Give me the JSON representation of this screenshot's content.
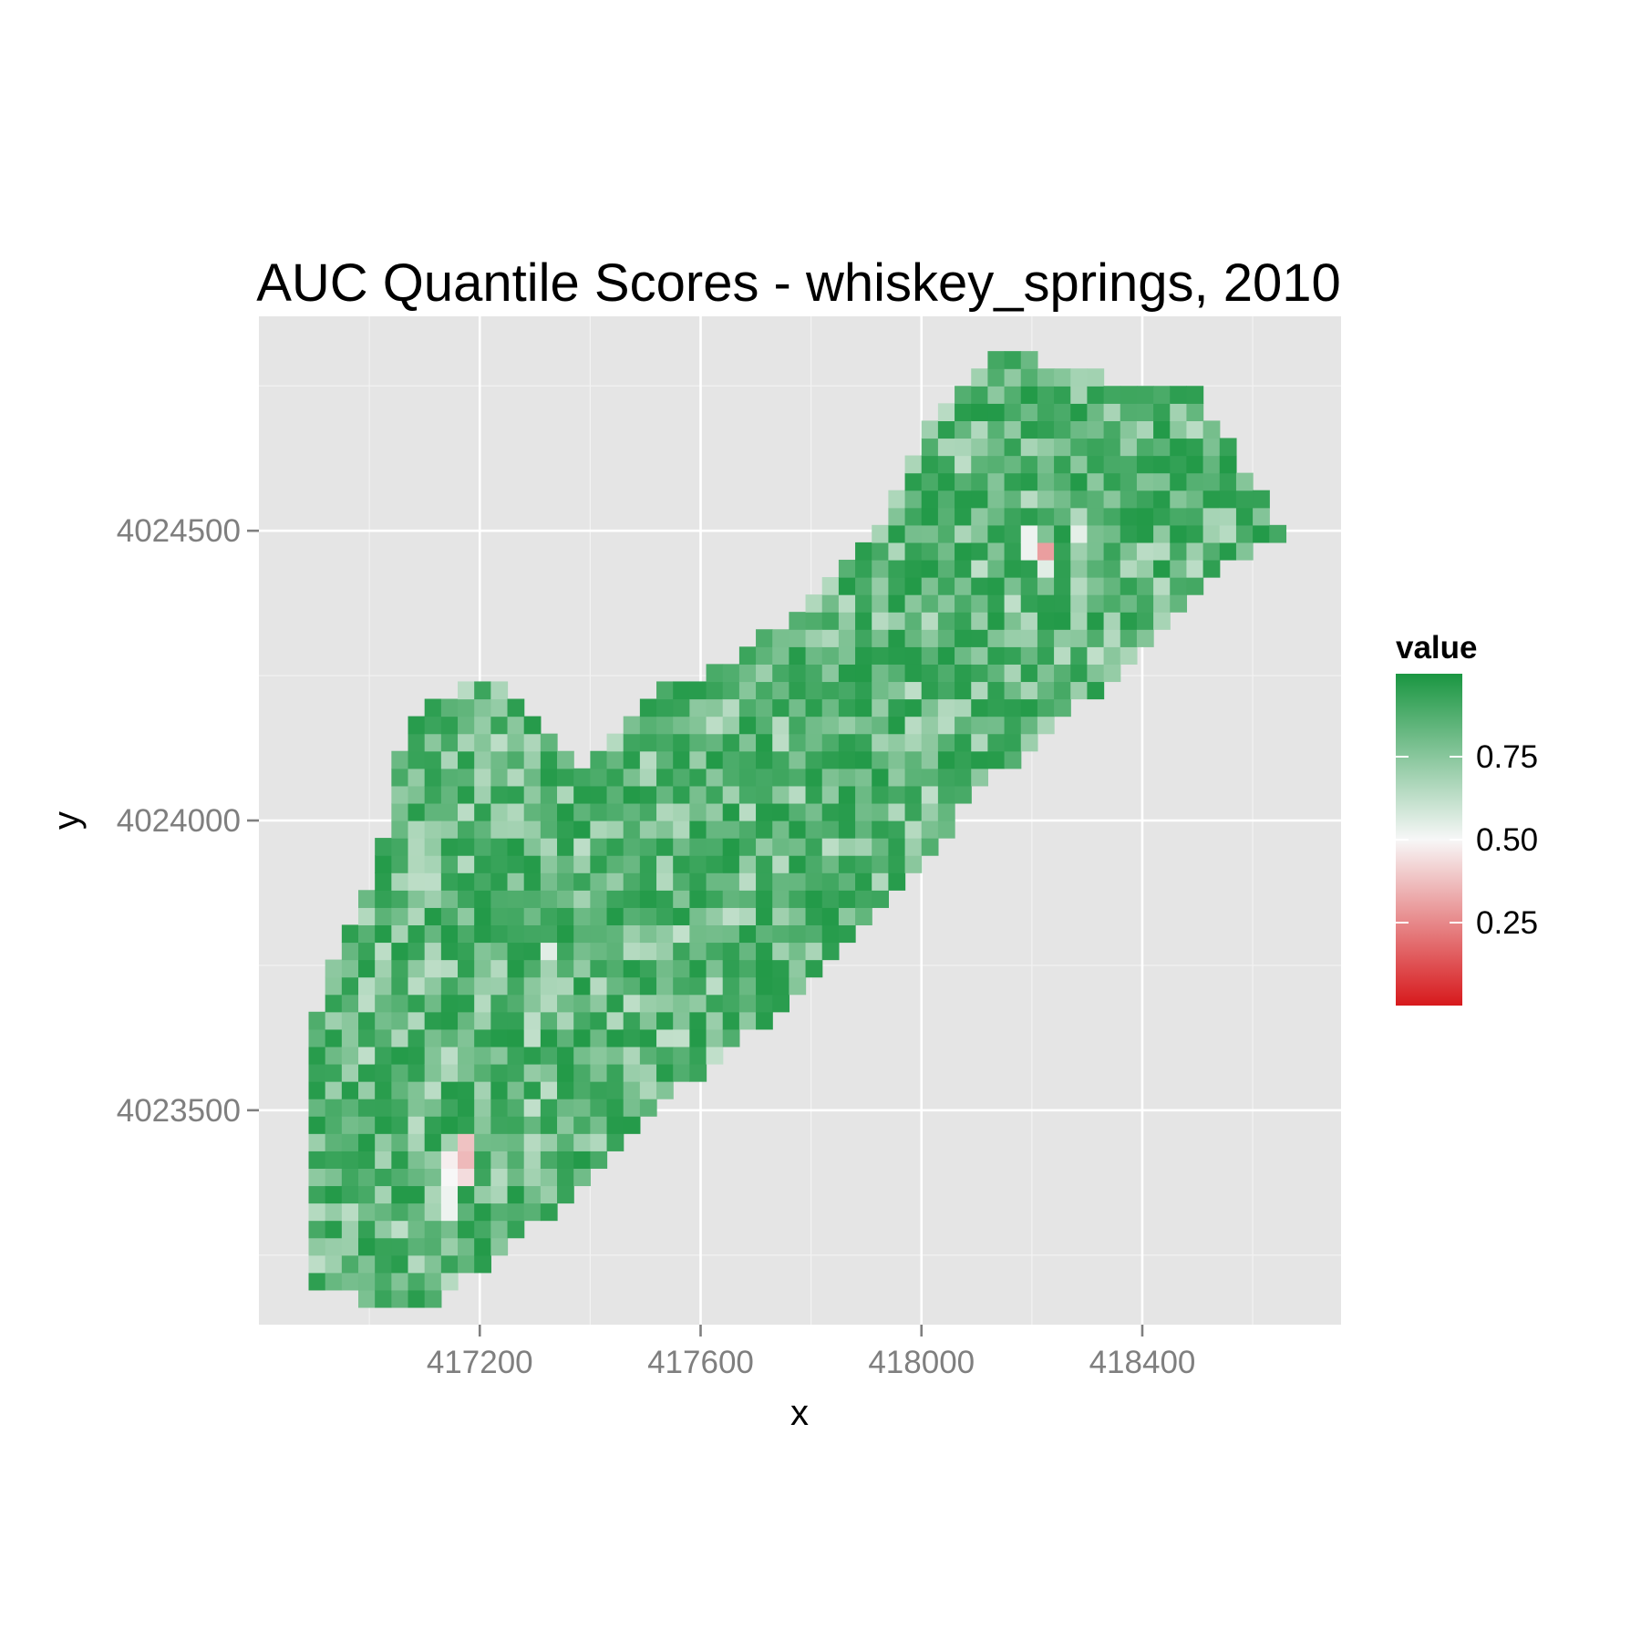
{
  "chart_data": {
    "type": "heatmap",
    "title": "AUC Quantile Scores - whiskey_springs, 2010",
    "xlabel": "x",
    "ylabel": "y",
    "xlim": [
      416800,
      418760
    ],
    "ylim": [
      4023130,
      4024870
    ],
    "x_ticks": [
      417200,
      417600,
      418000,
      418400
    ],
    "x_tick_labels": [
      "417200",
      "417600",
      "418000",
      "418400"
    ],
    "y_ticks": [
      4023500,
      4024000,
      4024500
    ],
    "y_tick_labels": [
      "4023500",
      "4024000",
      "4024500"
    ],
    "grid": true,
    "cell_size": 30,
    "region_polygon": [
      [
        416890,
        4023200
      ],
      [
        417040,
        4023160
      ],
      [
        417100,
        4023160
      ],
      [
        417300,
        4023300
      ],
      [
        417450,
        4023440
      ],
      [
        417640,
        4023600
      ],
      [
        417780,
        4023700
      ],
      [
        417940,
        4023850
      ],
      [
        418090,
        4024040
      ],
      [
        418350,
        4024250
      ],
      [
        418540,
        4024450
      ],
      [
        418670,
        4024480
      ],
      [
        418500,
        4024740
      ],
      [
        418240,
        4024780
      ],
      [
        418150,
        4024830
      ],
      [
        418080,
        4024770
      ],
      [
        418010,
        4024690
      ],
      [
        417980,
        4024600
      ],
      [
        417860,
        4024430
      ],
      [
        417680,
        4024290
      ],
      [
        417500,
        4024210
      ],
      [
        417380,
        4024090
      ],
      [
        417280,
        4024200
      ],
      [
        417250,
        4024250
      ],
      [
        417160,
        4024230
      ],
      [
        417120,
        4024200
      ],
      [
        417060,
        4024160
      ],
      [
        417040,
        4024030
      ],
      [
        417010,
        4023890
      ],
      [
        416920,
        4023750
      ],
      [
        416890,
        4023610
      ]
    ],
    "value_stats": {
      "typical_range": [
        0.62,
        0.98
      ],
      "mean": 0.86
    },
    "low_value_cells": [
      {
        "x": 418230,
        "y": 4024470,
        "value": 0.3
      },
      {
        "x": 418230,
        "y": 4024450,
        "value": 0.55
      },
      {
        "x": 418200,
        "y": 4024480,
        "value": 0.52
      },
      {
        "x": 418290,
        "y": 4024490,
        "value": 0.54
      },
      {
        "x": 417180,
        "y": 4023440,
        "value": 0.38
      },
      {
        "x": 417180,
        "y": 4023410,
        "value": 0.36
      },
      {
        "x": 417180,
        "y": 4023380,
        "value": 0.44
      },
      {
        "x": 417160,
        "y": 4023410,
        "value": 0.48
      },
      {
        "x": 417160,
        "y": 4023380,
        "value": 0.5
      },
      {
        "x": 417150,
        "y": 4023340,
        "value": 0.52
      },
      {
        "x": 417330,
        "y": 4023780,
        "value": 0.55
      }
    ],
    "colorscale": {
      "name": "value",
      "min": 0,
      "mid": 0.5,
      "max": 1,
      "low_color": "#d7191c",
      "mid_color": "#f7f7f7",
      "high_color": "#1a9641",
      "ticks": [
        0.25,
        0.5,
        0.75
      ],
      "tick_labels": [
        "0.25",
        "0.50",
        "0.75"
      ]
    },
    "legend_position": "right"
  }
}
